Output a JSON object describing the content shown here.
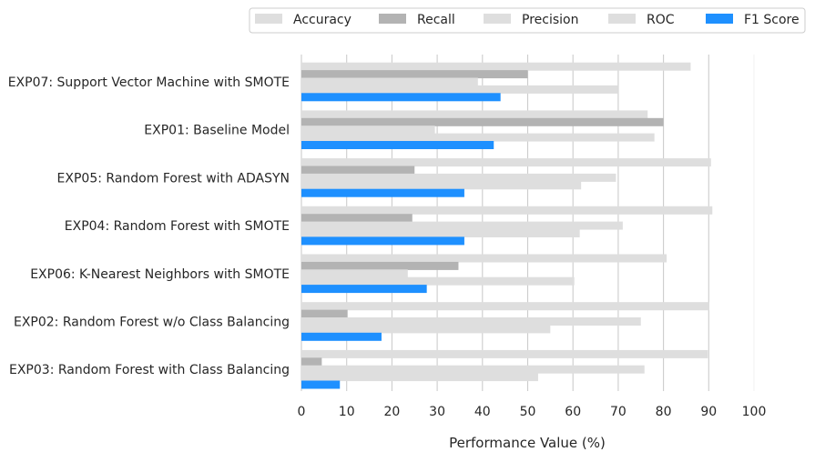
{
  "chart_data": {
    "type": "bar",
    "orientation": "horizontal",
    "categories": [
      "EXP07: Support Vector Machine with SMOTE",
      "EXP01: Baseline Model",
      "EXP05: Random Forest with ADASYN",
      "EXP04: Random Forest with SMOTE",
      "EXP06: K-Nearest Neighbors with SMOTE",
      "EXP02: Random Forest w/o Class Balancing",
      "EXP03: Random Forest with Class Balancing"
    ],
    "series": [
      {
        "name": "Accuracy",
        "color": "#dedede",
        "values": [
          86,
          76.5,
          90.5,
          90.8,
          80.7,
          90.1,
          89.8
        ]
      },
      {
        "name": "Recall",
        "color": "#b3b3b3",
        "values": [
          50,
          80,
          25,
          24.5,
          34.7,
          10.2,
          4.5
        ]
      },
      {
        "name": "Precision",
        "color": "#dedede",
        "values": [
          39,
          29.5,
          69.5,
          71,
          23.5,
          75,
          75.8
        ]
      },
      {
        "name": "ROC",
        "color": "#dedede",
        "values": [
          70,
          78,
          61.8,
          61.5,
          60.3,
          55,
          52.3
        ]
      },
      {
        "name": "F1 Score",
        "color": "#1e90ff",
        "values": [
          44,
          42.5,
          36,
          36,
          27.7,
          17.7,
          8.5
        ]
      }
    ],
    "xlabel": "Performance Value (%)",
    "ylabel": "",
    "xlim": [
      0,
      100
    ],
    "xticks": [
      "0",
      "10",
      "20",
      "30",
      "40",
      "50",
      "60",
      "70",
      "80",
      "90",
      "100"
    ],
    "grid": "vertical",
    "legend_position": "top"
  }
}
